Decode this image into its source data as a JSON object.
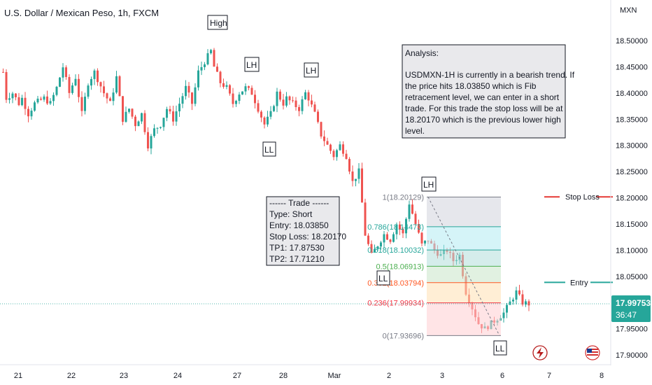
{
  "header": {
    "symbol_title": "U.S. Dollar / Mexican Peso, 1h, FXCM",
    "currency": "MXN"
  },
  "colors": {
    "up": "#26a69a",
    "down": "#ef5350",
    "stop_loss": "#e53935",
    "entry": "#26a69a",
    "price_label_bg": "#26a69a"
  },
  "annotations": {
    "high": "High",
    "lh1": "LH",
    "lh2": "LH",
    "lh3": "LH",
    "ll1": "LL",
    "ll2": "LL",
    "ll3": "LL"
  },
  "analysis": {
    "title": "Analysis:",
    "lines": [
      "USDMXN-1H is currently in a bearish trend. If",
      "the price hits 18.03850 which is Fib",
      "retracement level, we can enter in a short",
      "trade. For this trade the stop loss will be at",
      "18.20170 which is the previous lower high",
      "level."
    ]
  },
  "trade": {
    "header": "------ Trade ------",
    "lines": [
      "Type:  Short",
      "Entry:  18.03850",
      "Stop Loss: 18.20170",
      "TP1:  17.87530",
      "TP2:  17.71210"
    ]
  },
  "lines": {
    "stop_loss_label": "Stop Loss",
    "entry_label": "Entry"
  },
  "price_label": {
    "price": "17.99753",
    "countdown": "36:47"
  },
  "icons": [
    "lightning-icon",
    "us-flag-icon"
  ],
  "chart_data": {
    "type": "candlestick",
    "title": "U.S. Dollar / Mexican Peso, 1h, FXCM",
    "ylabel": "MXN",
    "ylim": [
      17.88,
      18.55
    ],
    "y_ticks": [
      17.9,
      17.95,
      18.0,
      18.05,
      18.1,
      18.15,
      18.2,
      18.25,
      18.3,
      18.35,
      18.4,
      18.45,
      18.5
    ],
    "y_tick_labels": [
      "17.90000",
      "17.95000",
      "18.00000",
      "18.05000",
      "18.10000",
      "18.15000",
      "18.20000",
      "18.25000",
      "18.30000",
      "18.35000",
      "18.40000",
      "18.45000",
      "18.50000"
    ],
    "x_ticks": [
      "21",
      "22",
      "23",
      "24",
      "27",
      "28",
      "Mar",
      "2",
      "3",
      "6",
      "7",
      "8"
    ],
    "grid": false,
    "last_price": 17.99753,
    "anchors": [
      [
        0,
        18.44
      ],
      [
        1,
        18.39
      ],
      [
        3,
        18.4
      ],
      [
        5,
        18.38
      ],
      [
        6,
        18.39
      ],
      [
        8,
        18.36
      ],
      [
        10,
        18.38
      ],
      [
        13,
        18.39
      ],
      [
        15,
        18.38
      ],
      [
        17,
        18.41
      ],
      [
        19,
        18.45
      ],
      [
        21,
        18.4
      ],
      [
        23,
        18.43
      ],
      [
        25,
        18.36
      ],
      [
        27,
        18.42
      ],
      [
        29,
        18.44
      ],
      [
        32,
        18.4
      ],
      [
        34,
        18.38
      ],
      [
        36,
        18.43
      ],
      [
        38,
        18.35
      ],
      [
        40,
        18.37
      ],
      [
        42,
        18.34
      ],
      [
        44,
        18.36
      ],
      [
        46,
        18.3
      ],
      [
        48,
        18.33
      ],
      [
        50,
        18.34
      ],
      [
        52,
        18.37
      ],
      [
        54,
        18.35
      ],
      [
        56,
        18.38
      ],
      [
        58,
        18.41
      ],
      [
        60,
        18.38
      ],
      [
        62,
        18.44
      ],
      [
        64,
        18.46
      ],
      [
        66,
        18.48
      ],
      [
        67,
        18.45
      ],
      [
        69,
        18.42
      ],
      [
        71,
        18.41
      ],
      [
        73,
        18.38
      ],
      [
        75,
        18.4
      ],
      [
        77,
        18.41
      ],
      [
        79,
        18.4
      ],
      [
        81,
        18.37
      ],
      [
        83,
        18.34
      ],
      [
        85,
        18.36
      ],
      [
        87,
        18.4
      ],
      [
        89,
        18.38
      ],
      [
        90,
        18.39
      ],
      [
        92,
        18.38
      ],
      [
        94,
        18.37
      ],
      [
        96,
        18.4
      ],
      [
        97,
        18.39
      ],
      [
        99,
        18.36
      ],
      [
        101,
        18.32
      ],
      [
        103,
        18.3
      ],
      [
        105,
        18.28
      ],
      [
        107,
        18.3
      ],
      [
        109,
        18.28
      ],
      [
        111,
        18.23
      ],
      [
        113,
        18.25
      ],
      [
        115,
        18.13
      ],
      [
        117,
        18.09
      ],
      [
        119,
        18.11
      ],
      [
        121,
        18.13
      ],
      [
        123,
        18.12
      ],
      [
        125,
        18.15
      ],
      [
        127,
        18.13
      ],
      [
        129,
        18.19
      ],
      [
        131,
        18.15
      ],
      [
        133,
        18.11
      ],
      [
        135,
        18.12
      ],
      [
        137,
        18.1
      ],
      [
        139,
        18.09
      ],
      [
        141,
        18.1
      ],
      [
        143,
        18.08
      ],
      [
        145,
        18.09
      ],
      [
        147,
        18.02
      ],
      [
        149,
        17.99
      ],
      [
        151,
        17.96
      ],
      [
        153,
        17.95
      ],
      [
        155,
        17.96
      ],
      [
        157,
        17.97
      ],
      [
        159,
        17.98
      ],
      [
        161,
        18.0
      ],
      [
        163,
        18.02
      ],
      [
        165,
        18.0
      ],
      [
        167,
        17.99753
      ]
    ],
    "fibonacci": {
      "levels": [
        {
          "ratio": "1",
          "value": 18.20129,
          "label": "1(18.20129)",
          "color": "#787b86"
        },
        {
          "ratio": "0.786",
          "value": 18.14473,
          "label": "0.786(18.14473)",
          "color": "#26a69a"
        },
        {
          "ratio": "0.618",
          "value": 18.10032,
          "label": "0.618(18.10032)",
          "color": "#26a69a"
        },
        {
          "ratio": "0.5",
          "value": 18.06913,
          "label": "0.5(18.06913)",
          "color": "#4caf50"
        },
        {
          "ratio": "0.382",
          "value": 18.03794,
          "label": "0.382(18.03794)",
          "color": "#ff5722"
        },
        {
          "ratio": "0.236",
          "value": 17.99934,
          "label": "0.236(17.99934)",
          "color": "#f23645"
        },
        {
          "ratio": "0",
          "value": 17.93696,
          "label": "0(17.93696)",
          "color": "#787b86"
        }
      ]
    },
    "stop_loss": 18.2017,
    "entry": 18.0385
  }
}
